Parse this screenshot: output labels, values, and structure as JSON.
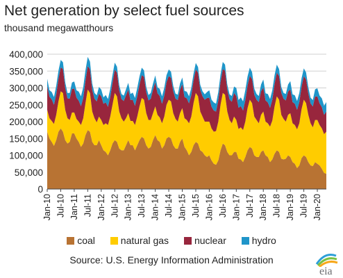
{
  "header": {
    "title": "Net generation by select fuel sources",
    "subtitle": "thousand megawatthours"
  },
  "legend": [
    {
      "name": "coal",
      "color": "#b87333"
    },
    {
      "name": "natural gas",
      "color": "#ffcc00"
    },
    {
      "name": "nuclear",
      "color": "#98263d"
    },
    {
      "name": "hydro",
      "color": "#1f95c9"
    }
  ],
  "footer": {
    "source": "Source:  U.S. Energy Information Administration",
    "logo_text": "eia",
    "logo_icon": "eia-logo-icon"
  },
  "chart_data": {
    "type": "area",
    "stacked": true,
    "title": "Net generation by select fuel sources",
    "ylabel": "thousand megawatthours",
    "ylim": [
      0,
      400000
    ],
    "yticks": [
      "0",
      "50,000",
      "100,000",
      "150,000",
      "200,000",
      "250,000",
      "300,000",
      "350,000",
      "400,000"
    ],
    "x_start": "2010-01",
    "x_end": "2020-05",
    "xticks": [
      "Jan-10",
      "Jul-10",
      "Jan-11",
      "Jul-11",
      "Jan-12",
      "Jul-12",
      "Jan-13",
      "Jul-13",
      "Jan-14",
      "Jul-14",
      "Jan-15",
      "Jul-15",
      "Jan-16",
      "Jul-16",
      "Jan-17",
      "Jul-17",
      "Jan-18",
      "Jul-18",
      "Jan-19",
      "Jul-19",
      "Jan-20"
    ],
    "grid": true,
    "legend_position": "bottom",
    "series": [
      {
        "name": "coal",
        "color": "#b87333",
        "values": [
          170000,
          150000,
          140000,
          128000,
          145000,
          170000,
          180000,
          170000,
          145000,
          135000,
          140000,
          165000,
          165000,
          150000,
          140000,
          125000,
          135000,
          160000,
          175000,
          170000,
          140000,
          130000,
          130000,
          145000,
          130000,
          115000,
          110000,
          100000,
          115000,
          135000,
          145000,
          140000,
          120000,
          115000,
          115000,
          130000,
          145000,
          130000,
          130000,
          115000,
          130000,
          145000,
          155000,
          150000,
          130000,
          120000,
          125000,
          145000,
          160000,
          145000,
          140000,
          120000,
          130000,
          150000,
          155000,
          150000,
          130000,
          120000,
          120000,
          140000,
          150000,
          125000,
          115000,
          100000,
          110000,
          130000,
          140000,
          135000,
          115000,
          110000,
          100000,
          95000,
          100000,
          85000,
          75000,
          72000,
          85000,
          115000,
          135000,
          130000,
          110000,
          100000,
          100000,
          110000,
          110000,
          90000,
          88000,
          80000,
          95000,
          115000,
          125000,
          120000,
          100000,
          95000,
          95000,
          110000,
          115000,
          100000,
          95000,
          80000,
          88000,
          105000,
          115000,
          110000,
          90000,
          88000,
          90000,
          100000,
          95000,
          80000,
          75000,
          62000,
          70000,
          92000,
          100000,
          95000,
          80000,
          70000,
          68000,
          80000,
          75000,
          70000,
          60000,
          48000,
          45000
        ]
      },
      {
        "name": "natural gas",
        "color": "#ffcc00",
        "values": [
          65000,
          60000,
          62000,
          65000,
          75000,
          90000,
          110000,
          115000,
          90000,
          75000,
          65000,
          62000,
          62000,
          58000,
          60000,
          65000,
          75000,
          95000,
          120000,
          115000,
          90000,
          80000,
          68000,
          70000,
          75000,
          75000,
          85000,
          90000,
          100000,
          115000,
          140000,
          135000,
          110000,
          95000,
          85000,
          80000,
          80000,
          72000,
          72000,
          75000,
          85000,
          100000,
          115000,
          115000,
          95000,
          85000,
          80000,
          80000,
          85000,
          75000,
          72000,
          75000,
          85000,
          100000,
          110000,
          110000,
          95000,
          88000,
          80000,
          85000,
          90000,
          85000,
          90000,
          95000,
          105000,
          125000,
          145000,
          140000,
          115000,
          105000,
          100000,
          105000,
          100000,
          95000,
          95000,
          100000,
          115000,
          135000,
          150000,
          150000,
          120000,
          105000,
          95000,
          105000,
          95000,
          88000,
          95000,
          95000,
          105000,
          125000,
          140000,
          135000,
          115000,
          110000,
          100000,
          110000,
          115000,
          100000,
          100000,
          105000,
          115000,
          140000,
          160000,
          155000,
          130000,
          120000,
          110000,
          120000,
          130000,
          115000,
          115000,
          115000,
          125000,
          145000,
          165000,
          160000,
          140000,
          125000,
          115000,
          125000,
          130000,
          120000,
          120000,
          115000,
          125000
        ]
      },
      {
        "name": "nuclear",
        "color": "#98263d",
        "values": [
          71000,
          64000,
          64000,
          57000,
          61000,
          67000,
          71000,
          71000,
          65000,
          59000,
          63000,
          70000,
          71000,
          63000,
          62000,
          56000,
          60000,
          66000,
          70000,
          70000,
          64000,
          58000,
          62000,
          68000,
          70000,
          63000,
          62000,
          54000,
          58000,
          65000,
          69000,
          70000,
          63000,
          57000,
          61000,
          68000,
          70000,
          62000,
          63000,
          57000,
          60000,
          65000,
          68000,
          68000,
          62000,
          58000,
          63000,
          69000,
          72000,
          64000,
          64000,
          58000,
          62000,
          67000,
          70000,
          70000,
          65000,
          60000,
          64000,
          70000,
          71000,
          63000,
          64000,
          59000,
          63000,
          67000,
          70000,
          70000,
          64000,
          60000,
          65000,
          70000,
          71000,
          64000,
          63000,
          58000,
          63000,
          68000,
          71000,
          71000,
          65000,
          61000,
          64000,
          70000,
          71000,
          63000,
          63000,
          58000,
          64000,
          67000,
          71000,
          71000,
          65000,
          60000,
          63000,
          70000,
          71000,
          63000,
          62000,
          56000,
          62000,
          67000,
          70000,
          70000,
          65000,
          60000,
          63000,
          69000,
          71000,
          63000,
          63000,
          58000,
          63000,
          67000,
          70000,
          70000,
          64000,
          59000,
          62000,
          69000,
          70000,
          64000,
          63000,
          57000,
          60000
        ]
      },
      {
        "name": "hydro",
        "color": "#1f95c9",
        "values": [
          21000,
          19000,
          22000,
          23000,
          25000,
          24000,
          22000,
          20000,
          17000,
          16000,
          17000,
          19000,
          21000,
          22000,
          27000,
          29000,
          32000,
          31000,
          27000,
          23000,
          19000,
          17000,
          18000,
          20000,
          20000,
          19000,
          22000,
          23000,
          24000,
          23000,
          21000,
          18000,
          15000,
          15000,
          16000,
          18000,
          20000,
          18000,
          21000,
          23000,
          25000,
          24000,
          22000,
          19000,
          16000,
          16000,
          17000,
          19000,
          20000,
          18000,
          21000,
          22000,
          23000,
          21000,
          20000,
          18000,
          16000,
          15000,
          16000,
          18000,
          20000,
          18000,
          20000,
          21000,
          22000,
          20000,
          19000,
          17000,
          15000,
          15000,
          16000,
          18000,
          22000,
          21000,
          24000,
          23000,
          25000,
          22000,
          21000,
          18000,
          15000,
          15000,
          17000,
          19000,
          24000,
          23000,
          26000,
          27000,
          29000,
          27000,
          24000,
          21000,
          18000,
          17000,
          18000,
          20000,
          24000,
          21000,
          25000,
          26000,
          28000,
          26000,
          24000,
          21000,
          18000,
          17000,
          19000,
          21000,
          24000,
          23000,
          25000,
          26000,
          27000,
          25000,
          23000,
          21000,
          18000,
          17000,
          19000,
          22000,
          24000,
          23000,
          26000,
          27000,
          28000
        ]
      }
    ]
  }
}
